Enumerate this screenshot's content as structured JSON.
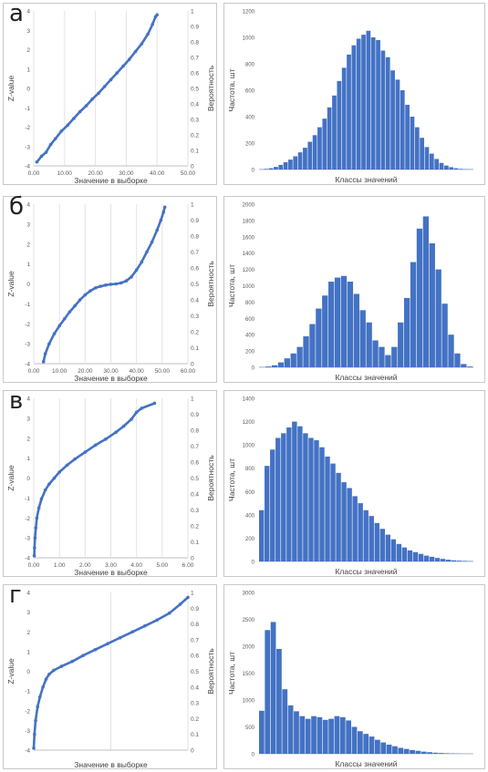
{
  "chart_data": [
    {
      "id": "a",
      "panel_label": "а",
      "type": "scatter",
      "xlabel": "Значение в выборке",
      "ylabel": "Z-value",
      "y2label": "Вероятность",
      "xlim": [
        0,
        50
      ],
      "ylim": [
        -4,
        4
      ],
      "xticks": [
        "0.00",
        "10.00",
        "20.00",
        "30.00",
        "40.00",
        "50.00"
      ],
      "yticks": [
        "-4",
        "-3",
        "-2",
        "-1",
        "0",
        "1",
        "2",
        "3",
        "4"
      ],
      "y2ticks": [
        "0",
        "0.1",
        "0.2",
        "0.3",
        "0.4",
        "0.5",
        "0.6",
        "0.7",
        "0.8",
        "0.9",
        "1"
      ],
      "color": "#4472C4",
      "points": [
        [
          1.0,
          -3.8
        ],
        [
          2.5,
          -3.5
        ],
        [
          4.0,
          -3.3
        ],
        [
          5.5,
          -2.9
        ],
        [
          7.0,
          -2.6
        ],
        [
          9.0,
          -2.2
        ],
        [
          11.0,
          -1.9
        ],
        [
          13.0,
          -1.55
        ],
        [
          15.0,
          -1.2
        ],
        [
          17.0,
          -0.9
        ],
        [
          19.0,
          -0.55
        ],
        [
          21.0,
          -0.25
        ],
        [
          23.0,
          0.1
        ],
        [
          25.0,
          0.45
        ],
        [
          27.0,
          0.8
        ],
        [
          29.0,
          1.15
        ],
        [
          31.0,
          1.5
        ],
        [
          33.0,
          1.9
        ],
        [
          35.0,
          2.3
        ],
        [
          37.0,
          2.8
        ],
        [
          38.5,
          3.3
        ],
        [
          39.5,
          3.7
        ],
        [
          40.0,
          3.8
        ]
      ]
    },
    {
      "id": "a_hist",
      "type": "bar",
      "xlabel": "Классы значений",
      "ylabel": "Частота, шт",
      "ylim": [
        0,
        1200
      ],
      "yticks": [
        "0",
        "200",
        "400",
        "600",
        "800",
        "1000",
        "1200"
      ],
      "color": "#4472C4",
      "values": [
        2,
        5,
        10,
        20,
        35,
        55,
        75,
        100,
        130,
        165,
        210,
        260,
        320,
        385,
        470,
        560,
        670,
        770,
        870,
        940,
        990,
        1020,
        1050,
        1000,
        980,
        900,
        850,
        750,
        680,
        600,
        490,
        400,
        320,
        240,
        170,
        120,
        80,
        50,
        30,
        18,
        10,
        5,
        3,
        2
      ]
    },
    {
      "id": "b",
      "panel_label": "б",
      "type": "scatter",
      "xlabel": "Значение в выборке",
      "ylabel": "Z-value",
      "y2label": "Вероятность",
      "xlim": [
        0,
        60
      ],
      "ylim": [
        -4,
        4
      ],
      "xticks": [
        "0.00",
        "10.00",
        "20.00",
        "30.00",
        "40.00",
        "50.00",
        "60.00"
      ],
      "yticks": [
        "-4",
        "-3",
        "-2",
        "-1",
        "0",
        "1",
        "2",
        "3",
        "4"
      ],
      "y2ticks": [
        "0",
        "0.1",
        "0.2",
        "0.3",
        "0.4",
        "0.5",
        "0.6",
        "0.7",
        "0.8",
        "0.9",
        "1"
      ],
      "color": "#4472C4",
      "points": [
        [
          3.8,
          -3.9
        ],
        [
          4.5,
          -3.5
        ],
        [
          6.0,
          -3.0
        ],
        [
          8.0,
          -2.5
        ],
        [
          10.0,
          -2.1
        ],
        [
          12.0,
          -1.75
        ],
        [
          14.0,
          -1.4
        ],
        [
          16.0,
          -1.1
        ],
        [
          18.0,
          -0.8
        ],
        [
          20.0,
          -0.55
        ],
        [
          22.0,
          -0.35
        ],
        [
          24.0,
          -0.2
        ],
        [
          26.0,
          -0.12
        ],
        [
          28.0,
          -0.06
        ],
        [
          30.0,
          -0.02
        ],
        [
          32.0,
          0.0
        ],
        [
          34.0,
          0.05
        ],
        [
          36.0,
          0.15
        ],
        [
          38.0,
          0.35
        ],
        [
          40.0,
          0.7
        ],
        [
          42.0,
          1.1
        ],
        [
          44.0,
          1.6
        ],
        [
          46.0,
          2.1
        ],
        [
          48.0,
          2.7
        ],
        [
          49.5,
          3.2
        ],
        [
          50.5,
          3.6
        ],
        [
          51.0,
          3.85
        ]
      ]
    },
    {
      "id": "b_hist",
      "type": "bar",
      "xlabel": "Классы значений",
      "ylabel": "Частота, шт",
      "ylim": [
        0,
        2000
      ],
      "yticks": [
        "0",
        "200",
        "400",
        "600",
        "800",
        "1000",
        "1200",
        "1400",
        "1600",
        "1800",
        "2000"
      ],
      "color": "#4472C4",
      "values": [
        3,
        10,
        25,
        60,
        110,
        170,
        250,
        380,
        530,
        720,
        880,
        1050,
        1100,
        1120,
        1050,
        900,
        700,
        550,
        330,
        250,
        150,
        250,
        550,
        850,
        1290,
        1700,
        1850,
        1520,
        1200,
        780,
        400,
        170,
        40,
        10
      ]
    },
    {
      "id": "c",
      "panel_label": "в",
      "type": "scatter",
      "xlabel": "Значение в выборке",
      "ylabel": "Z-value",
      "y2label": "Вероятность",
      "xlim": [
        0,
        6
      ],
      "ylim": [
        -4,
        4
      ],
      "xticks": [
        "0.00",
        "1.00",
        "2.00",
        "3.00",
        "4.00",
        "5.00",
        "6.00"
      ],
      "yticks": [
        "-4",
        "-3",
        "-2",
        "-1",
        "0",
        "1",
        "2",
        "3",
        "4"
      ],
      "y2ticks": [
        "0",
        "0.1",
        "0.2",
        "0.3",
        "0.4",
        "0.5",
        "0.6",
        "0.7",
        "0.8",
        "0.9",
        "1"
      ],
      "color": "#4472C4",
      "points": [
        [
          0.02,
          -3.9
        ],
        [
          0.03,
          -3.5
        ],
        [
          0.05,
          -3.0
        ],
        [
          0.08,
          -2.5
        ],
        [
          0.12,
          -2.0
        ],
        [
          0.2,
          -1.5
        ],
        [
          0.3,
          -1.05
        ],
        [
          0.45,
          -0.6
        ],
        [
          0.6,
          -0.3
        ],
        [
          0.8,
          0.0
        ],
        [
          1.0,
          0.3
        ],
        [
          1.3,
          0.65
        ],
        [
          1.6,
          0.95
        ],
        [
          2.0,
          1.3
        ],
        [
          2.4,
          1.65
        ],
        [
          2.8,
          1.95
        ],
        [
          3.2,
          2.3
        ],
        [
          3.5,
          2.6
        ],
        [
          3.8,
          2.95
        ],
        [
          4.0,
          3.3
        ],
        [
          4.2,
          3.5
        ],
        [
          4.7,
          3.75
        ]
      ]
    },
    {
      "id": "c_hist",
      "type": "bar",
      "xlabel": "Классы значений",
      "ylabel": "Частота, шт",
      "ylim": [
        0,
        1400
      ],
      "yticks": [
        "0",
        "200",
        "400",
        "600",
        "800",
        "1000",
        "1200",
        "1400"
      ],
      "color": "#4472C4",
      "values": [
        440,
        820,
        960,
        1060,
        1100,
        1150,
        1200,
        1160,
        1100,
        1060,
        1040,
        980,
        900,
        840,
        760,
        680,
        630,
        560,
        500,
        440,
        390,
        330,
        280,
        230,
        190,
        150,
        120,
        95,
        80,
        65,
        50,
        40,
        30,
        22,
        15,
        10,
        7,
        5,
        3
      ]
    },
    {
      "id": "d",
      "panel_label": "г",
      "type": "scatter",
      "xlabel": "Значение в выборке",
      "ylabel": "Z-value",
      "y2label": "Вероятность",
      "xlim": [
        0,
        1
      ],
      "ylim": [
        -4,
        4
      ],
      "xticks": [],
      "yticks": [
        "-4",
        "-3",
        "-2",
        "-1",
        "0",
        "1",
        "2",
        "3",
        "4"
      ],
      "y2ticks": [
        "0",
        "0.1",
        "0.2",
        "0.3",
        "0.4",
        "0.5",
        "0.6",
        "0.7",
        "0.8",
        "0.9",
        "1"
      ],
      "color": "#4472C4",
      "points": [
        [
          0.0,
          -3.9
        ],
        [
          0.005,
          -3.2
        ],
        [
          0.012,
          -2.5
        ],
        [
          0.025,
          -1.8
        ],
        [
          0.04,
          -1.3
        ],
        [
          0.06,
          -0.8
        ],
        [
          0.08,
          -0.4
        ],
        [
          0.1,
          -0.15
        ],
        [
          0.13,
          0.05
        ],
        [
          0.18,
          0.25
        ],
        [
          0.25,
          0.5
        ],
        [
          0.32,
          0.8
        ],
        [
          0.4,
          1.1
        ],
        [
          0.48,
          1.4
        ],
        [
          0.56,
          1.7
        ],
        [
          0.64,
          2.0
        ],
        [
          0.72,
          2.3
        ],
        [
          0.8,
          2.6
        ],
        [
          0.88,
          2.95
        ],
        [
          0.95,
          3.4
        ],
        [
          1.0,
          3.75
        ]
      ]
    },
    {
      "id": "d_hist",
      "type": "bar",
      "xlabel": "Классы значений",
      "ylabel": "Частота, шт",
      "ylim": [
        0,
        3000
      ],
      "yticks": [
        "0",
        "500",
        "1000",
        "1500",
        "2000",
        "2500",
        "3000"
      ],
      "color": "#4472C4",
      "values": [
        800,
        2300,
        2450,
        1950,
        1200,
        900,
        790,
        700,
        650,
        700,
        680,
        630,
        650,
        700,
        680,
        620,
        500,
        420,
        370,
        320,
        260,
        210,
        170,
        140,
        110,
        90,
        70,
        55,
        40,
        30,
        20,
        15,
        10,
        7,
        5,
        3,
        2
      ]
    }
  ]
}
